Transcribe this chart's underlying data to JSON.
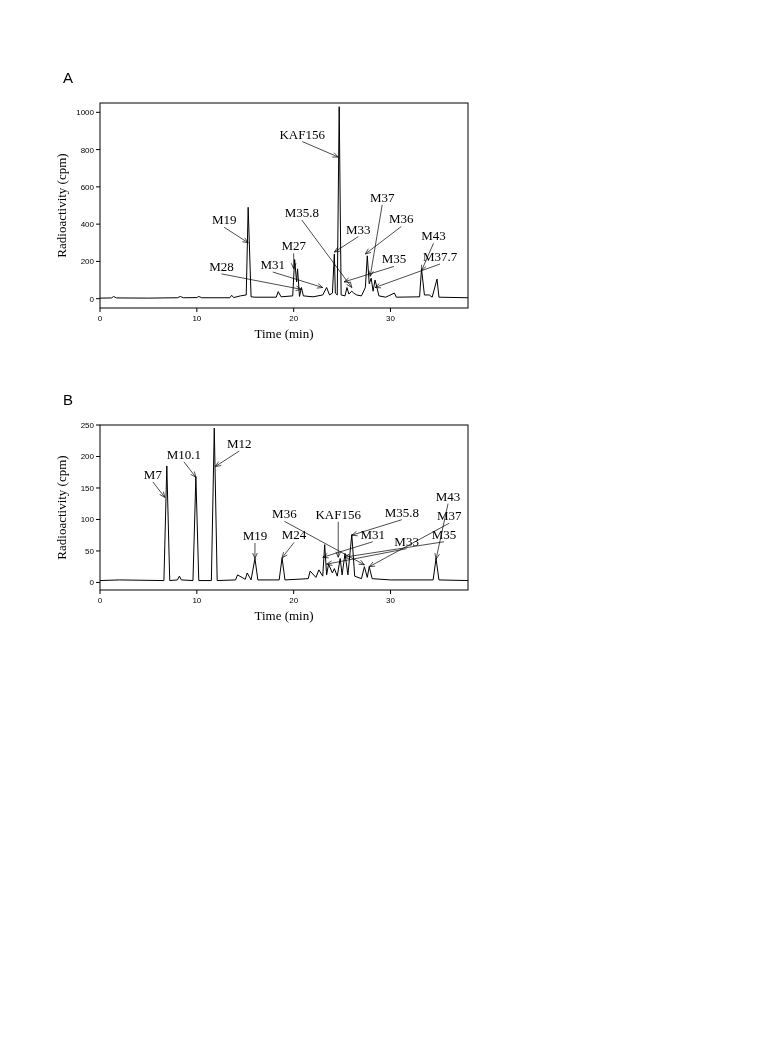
{
  "chart_data": [
    {
      "type": "line",
      "title": "A",
      "xlabel": "Time (min)",
      "ylabel": "Radioactivity (cpm)",
      "xlim": [
        0,
        38
      ],
      "ylim": [
        -50,
        1050
      ],
      "xticks": [
        0,
        10,
        20,
        30
      ],
      "yticks": [
        0,
        200,
        400,
        600,
        800,
        1000
      ],
      "x": [
        0,
        1.2,
        1.4,
        1.7,
        5,
        8,
        8.3,
        8.6,
        10,
        10.2,
        10.5,
        13.4,
        13.6,
        13.8,
        14.5,
        15.1,
        15.3,
        15.6,
        16,
        18.2,
        18.4,
        18.7,
        19.9,
        20.1,
        20.3,
        20.4,
        20.6,
        20.8,
        21,
        22,
        23,
        23.4,
        23.7,
        24,
        24.2,
        24.3,
        24.5,
        24.7,
        24.9,
        25.3,
        25.5,
        25.7,
        26,
        26.2,
        26.5,
        27,
        27.4,
        27.6,
        27.8,
        28,
        28.2,
        28.4,
        28.6,
        28.8,
        29.5,
        30.4,
        30.6,
        33,
        33.2,
        33.5,
        34,
        34.3,
        34.8,
        35,
        38
      ],
      "series": [
        {
          "color": "#000000",
          "values": [
            3,
            4,
            12,
            4,
            3,
            5,
            12,
            5,
            6,
            12,
            5,
            5,
            18,
            6,
            15,
            20,
            490,
            10,
            8,
            8,
            38,
            10,
            15,
            210,
            90,
            160,
            12,
            60,
            15,
            10,
            20,
            60,
            20,
            30,
            240,
            30,
            20,
            1030,
            20,
            15,
            60,
            25,
            40,
            30,
            20,
            15,
            60,
            230,
            80,
            110,
            40,
            100,
            60,
            15,
            8,
            30,
            8,
            10,
            160,
            20,
            20,
            8,
            105,
            8,
            5
          ]
        }
      ],
      "annotations": [
        {
          "text": "M19",
          "x": 15.3,
          "y": 300
        },
        {
          "text": "M27",
          "x": 20.0,
          "y": 160
        },
        {
          "text": "M28",
          "x": 20.8,
          "y": 50
        },
        {
          "text": "M31",
          "x": 23.0,
          "y": 60
        },
        {
          "text": "M33",
          "x": 24.2,
          "y": 250
        },
        {
          "text": "KAF156",
          "x": 24.6,
          "y": 760
        },
        {
          "text": "M35",
          "x": 25.2,
          "y": 90
        },
        {
          "text": "M35.8",
          "x": 26.0,
          "y": 60
        },
        {
          "text": "M36",
          "x": 27.4,
          "y": 240
        },
        {
          "text": "M37",
          "x": 27.9,
          "y": 120
        },
        {
          "text": "M37.7",
          "x": 28.4,
          "y": 60
        },
        {
          "text": "M43",
          "x": 33.2,
          "y": 150
        }
      ]
    },
    {
      "type": "line",
      "title": "B",
      "xlabel": "Time (min)",
      "ylabel": "Radioactivity (cpm)",
      "xlim": [
        0,
        38
      ],
      "ylim": [
        -12,
        250
      ],
      "xticks": [
        0,
        10,
        20,
        30
      ],
      "yticks": [
        0,
        50,
        100,
        150,
        200,
        250
      ],
      "x": [
        0,
        2,
        6.6,
        6.9,
        7.2,
        8,
        8.2,
        8.4,
        9.6,
        9.9,
        10.2,
        11.5,
        11.8,
        12.1,
        14,
        14.2,
        15,
        15.2,
        15.6,
        16,
        16.3,
        18.5,
        18.8,
        19.1,
        21.5,
        21.7,
        22.3,
        22.6,
        23,
        23.2,
        23.4,
        23.6,
        24,
        24.2,
        24.5,
        24.8,
        25,
        25.3,
        25.6,
        26,
        26.3,
        27,
        27.3,
        27.6,
        27.8,
        28.1,
        30,
        34.4,
        34.7,
        35,
        38
      ],
      "series": [
        {
          "color": "#000000",
          "values": [
            3,
            4,
            3,
            185,
            3,
            4,
            10,
            4,
            3,
            168,
            3,
            3,
            245,
            3,
            4,
            12,
            5,
            15,
            4,
            38,
            4,
            4,
            39,
            4,
            6,
            18,
            8,
            20,
            10,
            60,
            12,
            29,
            15,
            22,
            10,
            38,
            12,
            46,
            12,
            76,
            10,
            6,
            25,
            8,
            25,
            6,
            4,
            4,
            38,
            4,
            3
          ]
        }
      ],
      "annotations": [
        {
          "text": "M7",
          "x": 6.7,
          "y": 135
        },
        {
          "text": "M10.1",
          "x": 9.9,
          "y": 167
        },
        {
          "text": "M12",
          "x": 11.9,
          "y": 184
        },
        {
          "text": "M19",
          "x": 16.0,
          "y": 38
        },
        {
          "text": "M24",
          "x": 18.8,
          "y": 39
        },
        {
          "text": "M31",
          "x": 23.0,
          "y": 40
        },
        {
          "text": "M33",
          "x": 23.4,
          "y": 29
        },
        {
          "text": "KAF156",
          "x": 24.6,
          "y": 40
        },
        {
          "text": "M35",
          "x": 25.2,
          "y": 40
        },
        {
          "text": "M35.8",
          "x": 26.0,
          "y": 75
        },
        {
          "text": "M36",
          "x": 27.3,
          "y": 28
        },
        {
          "text": "M37",
          "x": 27.8,
          "y": 25
        },
        {
          "text": "M43",
          "x": 34.7,
          "y": 37
        }
      ]
    }
  ]
}
